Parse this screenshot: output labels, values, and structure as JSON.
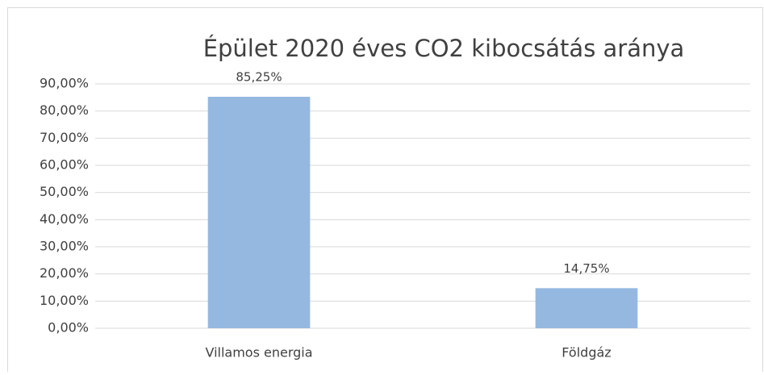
{
  "chart_data": {
    "type": "bar",
    "title": "Épület 2020 éves CO2 kibocsátás aránya",
    "categories": [
      "Villamos energia",
      "Földgáz"
    ],
    "values": [
      85.25,
      14.75
    ],
    "value_labels": [
      "85,25%",
      "14,75%"
    ],
    "color": "#95b8e0",
    "ylim": [
      0,
      90
    ],
    "yticks": [
      {
        "value": 0,
        "label": "0,00%"
      },
      {
        "value": 10,
        "label": "10,00%"
      },
      {
        "value": 20,
        "label": "20,00%"
      },
      {
        "value": 30,
        "label": "30,00%"
      },
      {
        "value": 40,
        "label": "40,00%"
      },
      {
        "value": 50,
        "label": "50,00%"
      },
      {
        "value": 60,
        "label": "60,00%"
      },
      {
        "value": 70,
        "label": "70,00%"
      },
      {
        "value": 80,
        "label": "80,00%"
      },
      {
        "value": 90,
        "label": "90,00%"
      }
    ],
    "grid": true
  }
}
